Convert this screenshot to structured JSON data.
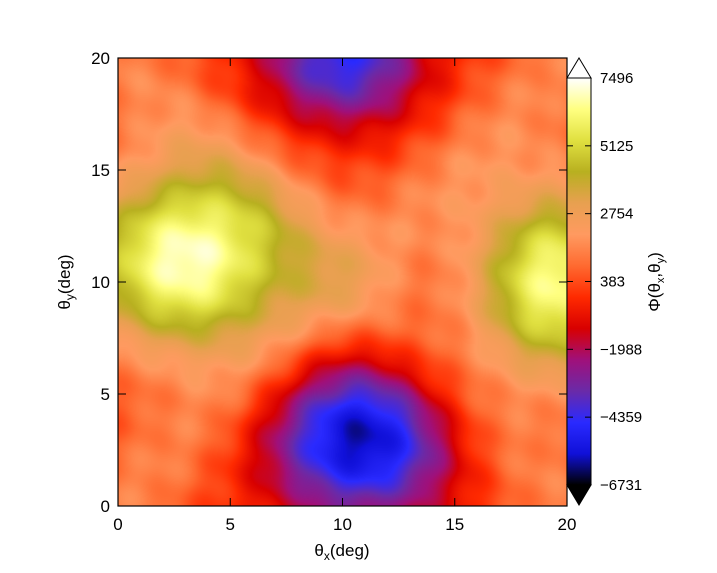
{
  "chart_data": {
    "type": "heatmap",
    "title": "",
    "xlabel": {
      "base": "θ",
      "sub": "x",
      "unit": "(deg)"
    },
    "ylabel": {
      "base": "θ",
      "sub": "y",
      "unit": "(deg)"
    },
    "xlim": [
      0,
      20
    ],
    "ylim": [
      0,
      20
    ],
    "x_ticks": [
      0,
      5,
      10,
      15,
      20
    ],
    "y_ticks": [
      0,
      5,
      10,
      15,
      20
    ],
    "colorbar": {
      "label": {
        "base": "Φ(θ",
        "sub1": "x",
        "mid": ",θ",
        "sub2": "y",
        "end": ")"
      },
      "ticks": [
        7496,
        5125,
        2754,
        383,
        -1988,
        -4359,
        -6731
      ],
      "tick_labels": [
        "7496",
        "5125",
        "2754",
        "383",
        "−1988",
        "−4359",
        "−6731"
      ],
      "range": [
        -6731,
        7496
      ],
      "extend": "both",
      "colormap": [
        "#000000",
        "#1010d8",
        "#2a2aff",
        "#6a2aa8",
        "#a0107a",
        "#d80000",
        "#ff2a00",
        "#ff6a30",
        "#ff9a60",
        "#e8a050",
        "#b8b020",
        "#e0e040",
        "#ffff80",
        "#ffffff"
      ]
    },
    "features": [
      {
        "kind": "peak",
        "x": 3,
        "y": 11,
        "value": 6800,
        "sx": 3.2,
        "sy": 2.8
      },
      {
        "kind": "peak",
        "x": 19.5,
        "y": 10,
        "value": 6200,
        "sx": 2.6,
        "sy": 3.0
      },
      {
        "kind": "trough",
        "x": 10.8,
        "y": 3,
        "value": -6200,
        "sx": 3.0,
        "sy": 2.6
      },
      {
        "kind": "trough",
        "x": 10,
        "y": 20,
        "value": -4800,
        "sx": 2.6,
        "sy": 2.2
      }
    ]
  }
}
